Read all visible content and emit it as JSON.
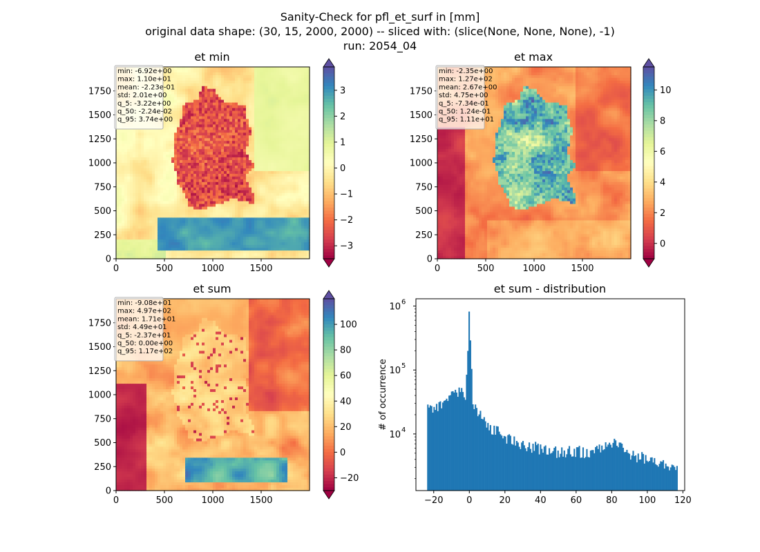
{
  "figure": {
    "suptitle_lines": [
      "Sanity-Check for pfl_et_surf in [mm]",
      "original data shape: (30, 15, 2000, 2000) -- sliced with: (slice(None, None, None), -1)",
      "run: 2054_04"
    ]
  },
  "colors": {
    "hist_bar": "#1f77b4",
    "cmap_spectral": [
      "#9e0142",
      "#d53e4f",
      "#f46d43",
      "#fdae61",
      "#fee08b",
      "#ffffbf",
      "#e6f598",
      "#abdda4",
      "#66c2a5",
      "#3288bd",
      "#5e4fa2"
    ]
  },
  "chart_data": [
    {
      "type": "heatmap",
      "title": "et min",
      "x_ticks": [
        "0",
        "500",
        "1000",
        "1500"
      ],
      "y_ticks": [
        "0",
        "250",
        "500",
        "750",
        "1000",
        "1250",
        "1500",
        "1750"
      ],
      "colorbar": {
        "ticks": [
          "−3",
          "−2",
          "−1",
          "0",
          "1",
          "2",
          "3"
        ],
        "range": [
          -3.5,
          3.9
        ],
        "extend": "both"
      },
      "stats": [
        "min: -6.92e+00",
        "max: 1.10e+01",
        "mean: -2.23e-01",
        "std: 2.01e+00",
        "q_5: -3.22e+00",
        "q_50: -2.24e-02",
        "q_95: 3.74e+00"
      ]
    },
    {
      "type": "heatmap",
      "title": "et max",
      "x_ticks": [
        "0",
        "500",
        "1000",
        "1500"
      ],
      "y_ticks": [
        "0",
        "250",
        "500",
        "750",
        "1000",
        "1250",
        "1500",
        "1750"
      ],
      "colorbar": {
        "ticks": [
          "0",
          "2",
          "4",
          "6",
          "8",
          "10"
        ],
        "range": [
          -1.0,
          11.5
        ],
        "extend": "both"
      },
      "stats": [
        "min: -2.35e+00",
        "max: 1.27e+02",
        "mean: 2.67e+00",
        "std: 4.75e+00",
        "q_5: -7.34e-01",
        "q_50: 1.24e-01",
        "q_95: 1.11e+01"
      ]
    },
    {
      "type": "heatmap",
      "title": "et sum",
      "x_ticks": [
        "0",
        "500",
        "1000",
        "1500"
      ],
      "y_ticks": [
        "0",
        "250",
        "500",
        "750",
        "1000",
        "1250",
        "1500",
        "1750"
      ],
      "colorbar": {
        "ticks": [
          "−20",
          "0",
          "20",
          "40",
          "60",
          "80",
          "100"
        ],
        "range": [
          -30,
          120
        ],
        "extend": "both"
      },
      "stats": [
        "min: -9.08e+01",
        "max: 4.97e+02",
        "mean: 1.71e+01",
        "std: 4.49e+01",
        "q_5: -2.37e+01",
        "q_50: 0.00e+00",
        "q_95: 1.17e+02"
      ]
    },
    {
      "type": "bar",
      "title": "et sum - distribution",
      "ylabel": "# of occurrence",
      "yscale": "log",
      "x_ticks": [
        "−20",
        "0",
        "20",
        "40",
        "60",
        "80",
        "100",
        "120"
      ],
      "y_ticks": [
        "10^4",
        "10^5",
        "10^6"
      ],
      "xlim": [
        -30,
        121
      ],
      "ylim": [
        1300,
        1300000
      ],
      "bins": {
        "start": -23.7,
        "end": 117,
        "count": 200
      },
      "anchors": [
        [
          -23.7,
          25000
        ],
        [
          -20,
          24000
        ],
        [
          -15,
          28000
        ],
        [
          -10,
          38000
        ],
        [
          -5,
          48000
        ],
        [
          -2,
          42000
        ],
        [
          0,
          820000
        ],
        [
          2,
          32000
        ],
        [
          5,
          22000
        ],
        [
          10,
          14000
        ],
        [
          20,
          9000
        ],
        [
          30,
          7000
        ],
        [
          40,
          6000
        ],
        [
          50,
          5200
        ],
        [
          60,
          5500
        ],
        [
          70,
          5000
        ],
        [
          80,
          7500
        ],
        [
          90,
          5000
        ],
        [
          100,
          4000
        ],
        [
          110,
          3500
        ],
        [
          117,
          3000
        ]
      ]
    }
  ]
}
